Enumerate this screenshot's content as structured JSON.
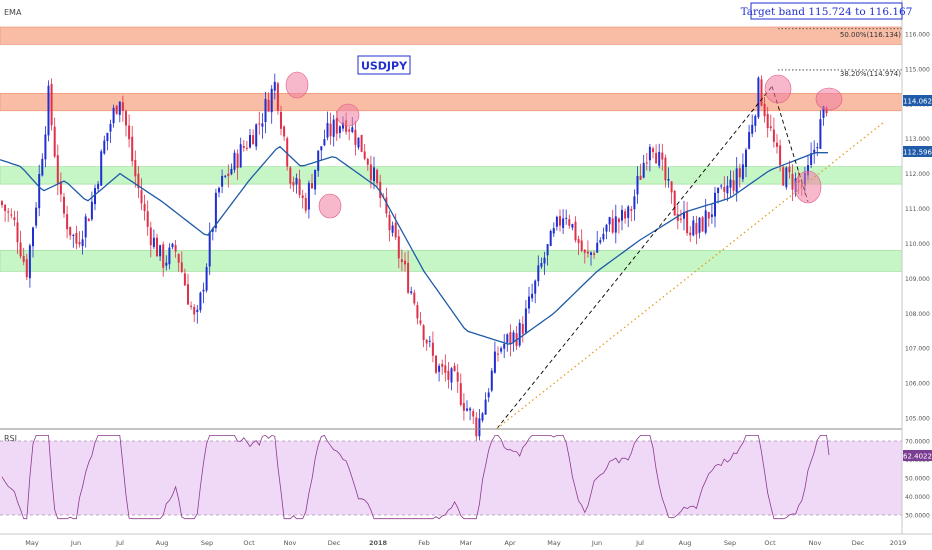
{
  "indicator_label": "EMA",
  "rsi_label": "RSI",
  "symbol": "USDJPY",
  "target_band": "Target band 115.724 to 116.167",
  "fib_50": "50.00%(116.134)",
  "fib_382": "38.20%(114.974)",
  "price_badges": {
    "last": "114.062",
    "ema": "112.596",
    "rsi": "62.4022"
  },
  "colors": {
    "up_candle": "#1f2fd1",
    "down_candle": "#e0314a",
    "ema_line": "#1f5ba8",
    "resistance_zone": "#f8b59a",
    "support_zone": "#b8f2b8",
    "rsi_line": "#8e3a8e",
    "rsi_band": "#efd9f7",
    "badge_blue": "#1f5ba8",
    "badge_purple": "#7b3d92",
    "highlight_ellipse": "#f07ea0",
    "trend_dashed": "#000000",
    "trend_dotted": "#e0a020"
  },
  "chart_data": [
    {
      "type": "candlestick",
      "title": "USDJPY",
      "price_axis_labels": [
        "116.000",
        "115.000",
        "114.000",
        "113.000",
        "112.000",
        "111.000",
        "110.000",
        "109.000",
        "108.000",
        "107.000",
        "106.000",
        "105.000"
      ],
      "time_axis_labels": [
        "May",
        "Jun",
        "Jul",
        "Aug",
        "Sep",
        "Oct",
        "Nov",
        "Dec",
        "2018",
        "Feb",
        "Mar",
        "Apr",
        "May",
        "Jun",
        "Jul",
        "Aug",
        "Sep",
        "Oct",
        "Nov",
        "Dec",
        "2019"
      ],
      "ylim": [
        104.6,
        116.6
      ],
      "resistance_zones": [
        [
          115.7,
          116.2
        ],
        [
          113.8,
          114.3
        ]
      ],
      "support_zones": [
        [
          111.7,
          112.2
        ],
        [
          109.2,
          109.8
        ]
      ],
      "close_path": [
        {
          "month": "May",
          "value": 110.5
        },
        {
          "month": "May",
          "value": 109.2
        },
        {
          "month": "May",
          "value": 111.5
        },
        {
          "month": "May",
          "value": 114.2
        },
        {
          "month": "Jun",
          "value": 111.0
        },
        {
          "month": "Jun",
          "value": 110.0
        },
        {
          "month": "Jun",
          "value": 111.0
        },
        {
          "month": "Jul",
          "value": 113.0
        },
        {
          "month": "Jul",
          "value": 114.3
        },
        {
          "month": "Jul",
          "value": 112.0
        },
        {
          "month": "Aug",
          "value": 110.5
        },
        {
          "month": "Aug",
          "value": 109.5
        },
        {
          "month": "Aug",
          "value": 109.8
        },
        {
          "month": "Sep",
          "value": 107.6
        },
        {
          "month": "Sep",
          "value": 111.5
        },
        {
          "month": "Oct",
          "value": 112.5
        },
        {
          "month": "Oct",
          "value": 113.5
        },
        {
          "month": "Nov",
          "value": 114.6
        },
        {
          "month": "Nov",
          "value": 112.0
        },
        {
          "month": "Nov",
          "value": 111.1
        },
        {
          "month": "Dec",
          "value": 113.0
        },
        {
          "month": "Dec",
          "value": 113.6
        },
        {
          "month": "2018",
          "value": 112.5
        },
        {
          "month": "2018",
          "value": 110.5
        },
        {
          "month": "Feb",
          "value": 108.5
        },
        {
          "month": "Feb",
          "value": 106.5
        },
        {
          "month": "Mar",
          "value": 106.0
        },
        {
          "month": "Mar",
          "value": 104.7
        },
        {
          "month": "Apr",
          "value": 107.0
        },
        {
          "month": "Apr",
          "value": 107.5
        },
        {
          "month": "May",
          "value": 109.5
        },
        {
          "month": "May",
          "value": 111.0
        },
        {
          "month": "Jun",
          "value": 109.5
        },
        {
          "month": "Jun",
          "value": 110.5
        },
        {
          "month": "Jul",
          "value": 110.8
        },
        {
          "month": "Jul",
          "value": 113.1
        },
        {
          "month": "Aug",
          "value": 111.0
        },
        {
          "month": "Aug",
          "value": 110.3
        },
        {
          "month": "Sep",
          "value": 111.3
        },
        {
          "month": "Sep",
          "value": 112.0
        },
        {
          "month": "Oct",
          "value": 114.5
        },
        {
          "month": "Oct",
          "value": 112.0
        },
        {
          "month": "Nov",
          "value": 111.6
        },
        {
          "month": "Nov",
          "value": 114.0
        }
      ],
      "ema_path": [
        {
          "month": "May",
          "value": 112.2
        },
        {
          "month": "May",
          "value": 111.5
        },
        {
          "month": "Jun",
          "value": 111.8
        },
        {
          "month": "Jun",
          "value": 111.2
        },
        {
          "month": "Jul",
          "value": 112.0
        },
        {
          "month": "Aug",
          "value": 111.2
        },
        {
          "month": "Sep",
          "value": 110.2
        },
        {
          "month": "Oct",
          "value": 111.8
        },
        {
          "month": "Nov",
          "value": 112.8
        },
        {
          "month": "Nov",
          "value": 112.2
        },
        {
          "month": "Dec",
          "value": 112.5
        },
        {
          "month": "2018",
          "value": 111.6
        },
        {
          "month": "Feb",
          "value": 109.2
        },
        {
          "month": "Mar",
          "value": 107.5
        },
        {
          "month": "Apr",
          "value": 107.1
        },
        {
          "month": "May",
          "value": 108.0
        },
        {
          "month": "Jun",
          "value": 109.2
        },
        {
          "month": "Jul",
          "value": 110.1
        },
        {
          "month": "Aug",
          "value": 110.9
        },
        {
          "month": "Sep",
          "value": 111.3
        },
        {
          "month": "Oct",
          "value": 112.1
        },
        {
          "month": "Nov",
          "value": 112.6
        }
      ]
    },
    {
      "type": "line",
      "title": "RSI",
      "y_axis_labels": [
        "70.0000",
        "60.0000",
        "50.0000",
        "40.0000",
        "30.0000"
      ],
      "ylim": [
        25,
        75
      ],
      "band": [
        30,
        70
      ],
      "last_value": 62.4022
    }
  ]
}
